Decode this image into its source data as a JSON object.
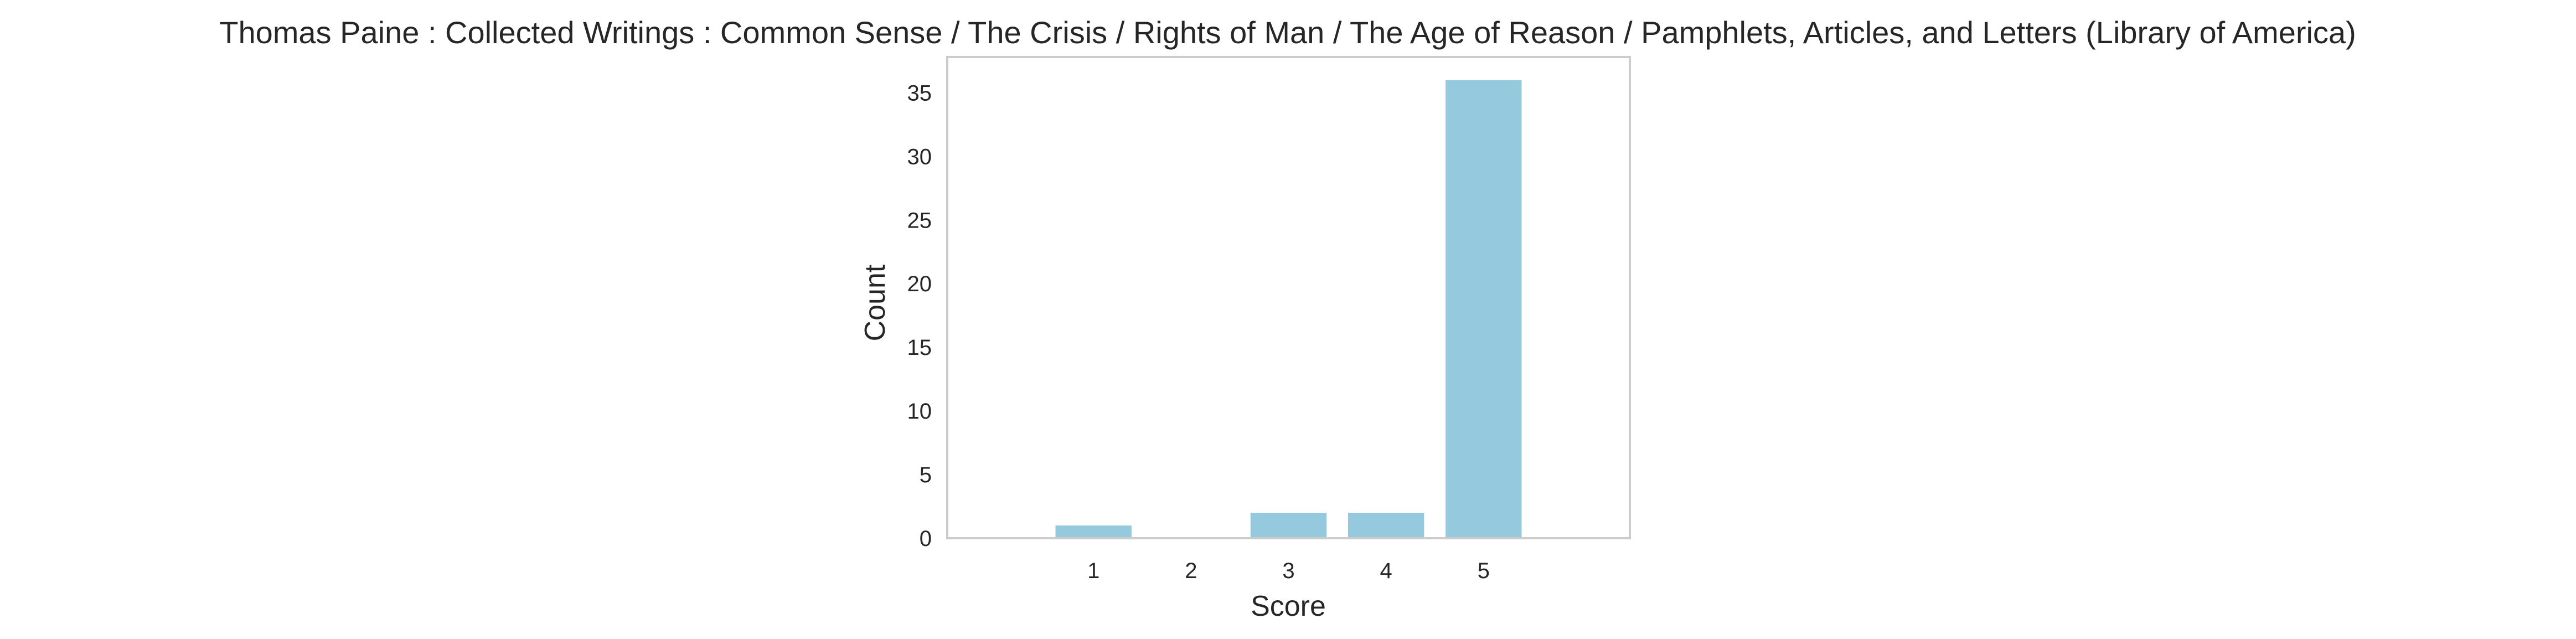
{
  "chart_data": {
    "type": "bar",
    "title": "Thomas Paine : Collected Writings : Common Sense / The Crisis / Rights of Man / The Age of Reason / Pamphlets, Articles, and Letters (Library of America)",
    "xlabel": "Score",
    "ylabel": "Count",
    "categories": [
      "1",
      "2",
      "3",
      "4",
      "5"
    ],
    "values": [
      1,
      0,
      2,
      2,
      36
    ],
    "xlim": [
      -0.5,
      6.5
    ],
    "ylim": [
      0,
      37.8
    ],
    "yticks": [
      0,
      5,
      10,
      15,
      20,
      25,
      30,
      35
    ],
    "grid": false,
    "legend": "none",
    "colors": {
      "bar": "#95c9dd",
      "axes_frame": "#cccccc",
      "text": "#262626",
      "background": "#ffffff"
    }
  }
}
